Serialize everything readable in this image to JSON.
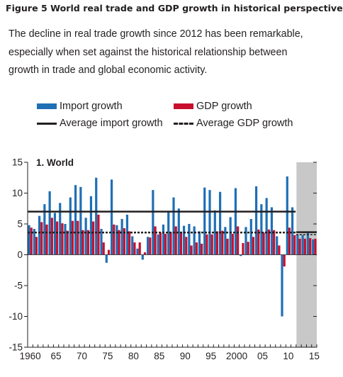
{
  "figure": {
    "title": "Figure 5 World real trade and GDP growth in historical perspective",
    "subtitle": "The decline in real trade growth since 2012 has been remarkable, especially when set against the historical relationship between growth in trade and global economic activity."
  },
  "legend": {
    "import_growth": "Import growth",
    "gdp_growth": "GDP growth",
    "avg_import": "Average import growth",
    "avg_gdp": "Average GDP growth"
  },
  "colors": {
    "import": "#1f6fb5",
    "gdp": "#c8102e",
    "axis": "#231f20",
    "shade": "#c8c8c8"
  },
  "chart_data": {
    "type": "bar",
    "panel_label": "1. World",
    "x": [
      1960,
      1961,
      1962,
      1963,
      1964,
      1965,
      1966,
      1967,
      1968,
      1969,
      1970,
      1971,
      1972,
      1973,
      1974,
      1975,
      1976,
      1977,
      1978,
      1979,
      1980,
      1981,
      1982,
      1983,
      1984,
      1985,
      1986,
      1987,
      1988,
      1989,
      1990,
      1991,
      1992,
      1993,
      1994,
      1995,
      1996,
      1997,
      1998,
      1999,
      2000,
      2001,
      2002,
      2003,
      2004,
      2005,
      2006,
      2007,
      2008,
      2009,
      2010,
      2011,
      2012,
      2013,
      2014,
      2015
    ],
    "x_tick_labels": [
      {
        "year": 1960,
        "label": "1960"
      },
      {
        "year": 1965,
        "label": "65"
      },
      {
        "year": 1970,
        "label": "70"
      },
      {
        "year": 1975,
        "label": "75"
      },
      {
        "year": 1980,
        "label": "80"
      },
      {
        "year": 1985,
        "label": "85"
      },
      {
        "year": 1990,
        "label": "90"
      },
      {
        "year": 1995,
        "label": "95"
      },
      {
        "year": 2000,
        "label": "2000"
      },
      {
        "year": 2005,
        "label": "05"
      },
      {
        "year": 2010,
        "label": "10"
      },
      {
        "year": 2015,
        "label": "15"
      }
    ],
    "series": [
      {
        "name": "Import growth",
        "values": [
          4.8,
          4.2,
          6.3,
          8.2,
          10.3,
          6.8,
          8.4,
          5.0,
          9.3,
          11.3,
          11.0,
          6.0,
          9.5,
          12.5,
          4.2,
          -1.3,
          12.2,
          4.8,
          5.8,
          6.5,
          3.0,
          1.0,
          -0.8,
          2.9,
          10.5,
          3.3,
          4.9,
          7.1,
          9.3,
          7.5,
          4.7,
          5.0,
          4.6,
          3.8,
          10.9,
          10.5,
          7.2,
          10.2,
          4.5,
          6.1,
          10.8,
          -0.2,
          4.5,
          5.8,
          11.1,
          8.2,
          9.2,
          7.7,
          3.0,
          -10.0,
          12.7,
          7.7,
          3.3,
          3.2,
          3.6,
          2.5
        ]
      },
      {
        "name": "GDP growth",
        "values": [
          4.4,
          2.9,
          5.3,
          4.9,
          6.0,
          5.4,
          5.1,
          3.9,
          5.5,
          5.5,
          4.0,
          4.0,
          5.4,
          6.5,
          2.0,
          0.8,
          4.9,
          4.0,
          4.3,
          3.8,
          2.0,
          2.0,
          0.4,
          2.8,
          4.6,
          3.6,
          3.4,
          3.6,
          4.6,
          3.7,
          2.9,
          1.5,
          2.0,
          1.8,
          3.3,
          3.3,
          3.8,
          3.9,
          2.6,
          3.4,
          4.6,
          1.9,
          2.1,
          2.9,
          4.1,
          3.6,
          4.1,
          4.0,
          1.5,
          -1.9,
          4.4,
          3.2,
          2.6,
          2.6,
          2.7,
          2.6
        ]
      }
    ],
    "average_import_growth": 7.0,
    "average_gdp_growth": 3.6,
    "ylim": [
      -15,
      15
    ],
    "y_ticks": [
      -15,
      -10,
      -5,
      0,
      5,
      10,
      15
    ],
    "shaded_from_year": 2012,
    "grid": false
  }
}
